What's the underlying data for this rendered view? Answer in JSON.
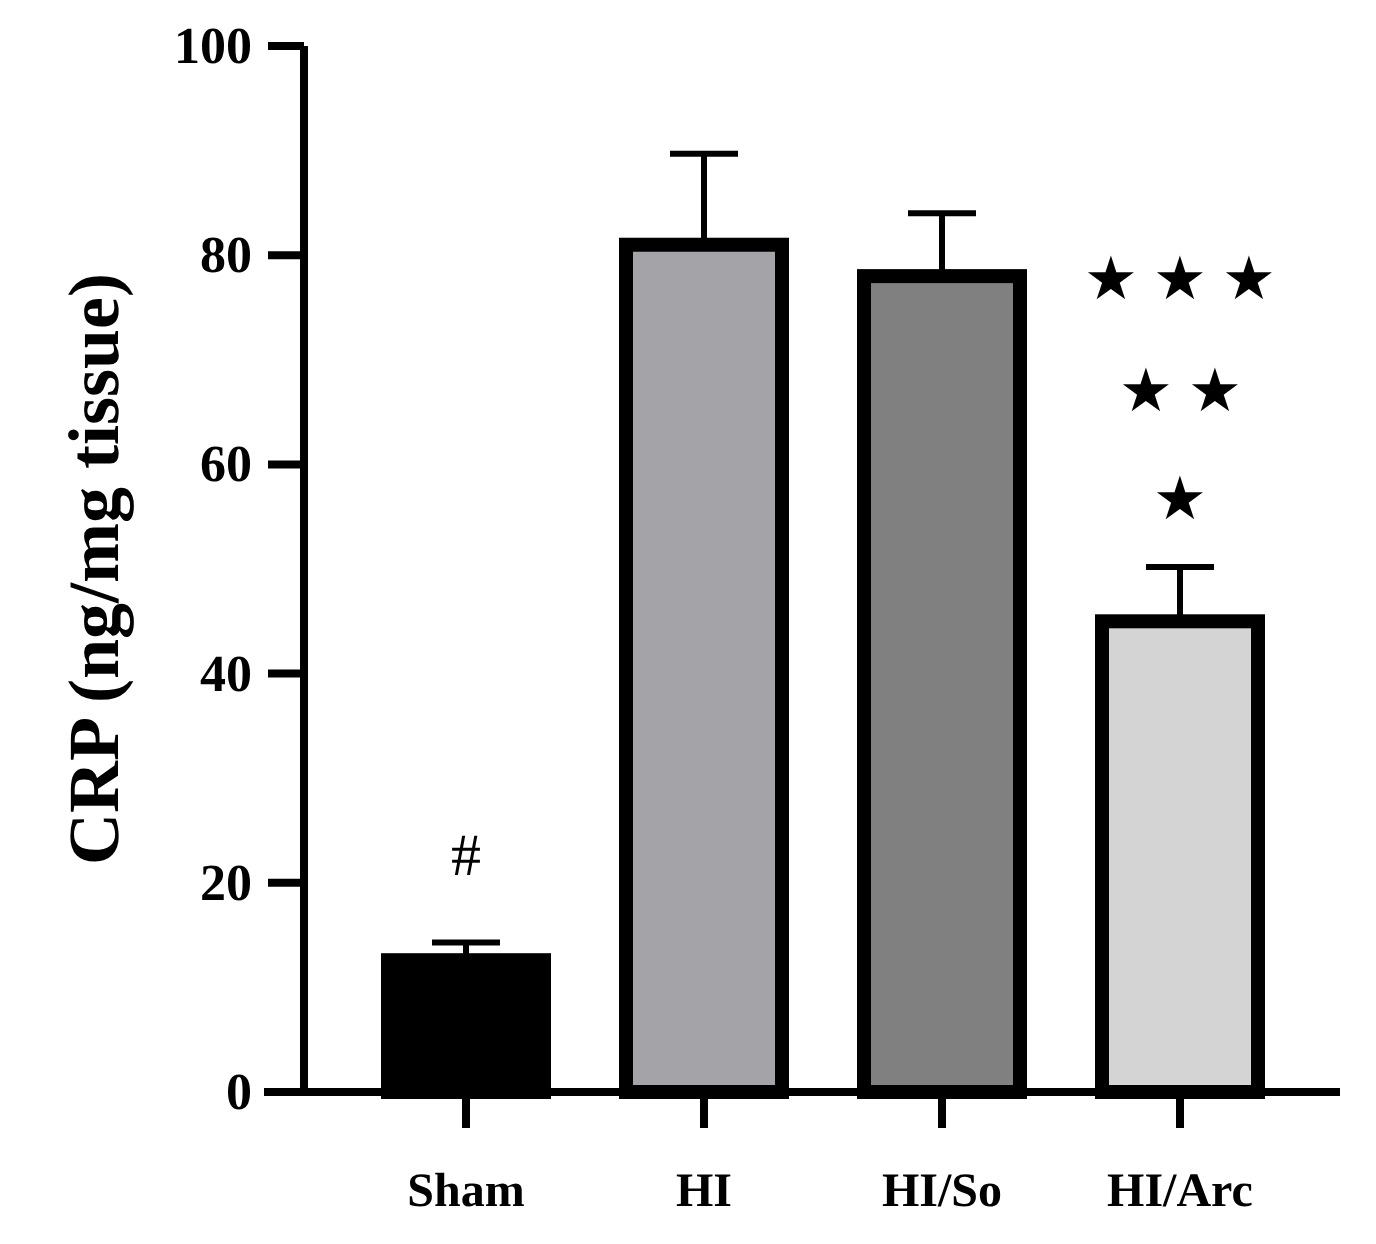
{
  "chart_data": {
    "type": "bar",
    "ylabel": "CRP (ng/mg tissue)",
    "categories": [
      "Sham",
      "HI",
      "HI/So",
      "HI/Arc"
    ],
    "values": [
      12.6,
      81,
      78,
      45
    ],
    "colors": [
      "#000000",
      "#a3a3a8",
      "#808080",
      "#d4d4d4"
    ],
    "errors": [
      [
        12.6,
        14.3
      ],
      [
        81,
        89.7
      ],
      [
        78,
        84
      ],
      [
        45,
        50.2
      ]
    ],
    "ylim": [
      0,
      100
    ],
    "yticks": [
      0,
      20,
      40,
      60,
      80,
      100
    ],
    "grid": false,
    "annotations": [
      "#",
      "★ ★ ★",
      "★ ★",
      "★"
    ]
  }
}
